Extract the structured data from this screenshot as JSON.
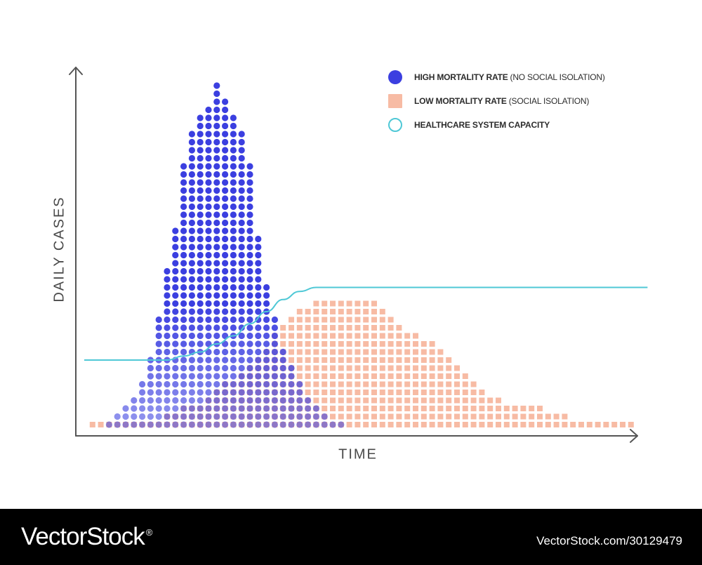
{
  "chart_data": {
    "type": "scatter",
    "title": "",
    "xlabel": "TIME",
    "ylabel": "DAILY CASES",
    "grid": false,
    "legend_placement": "top-right",
    "x_range": [
      0,
      68
    ],
    "y_range": [
      0,
      44
    ],
    "series": [
      {
        "name": "HIGH MORTALITY RATE",
        "name_note": "(NO SOCIAL ISOLATION)",
        "marker": "circle",
        "color": "#3b3fe0",
        "x": [
          3,
          4,
          5,
          6,
          7,
          8,
          9,
          10,
          11,
          12,
          13,
          14,
          15,
          16,
          17,
          18,
          19,
          20,
          21,
          22,
          23,
          24,
          25,
          26,
          27,
          28,
          29,
          30,
          31
        ],
        "values": [
          1,
          2,
          3,
          4,
          6,
          9,
          14,
          20,
          25,
          33,
          37,
          39,
          40,
          43,
          41,
          39,
          37,
          33,
          24,
          18,
          14,
          10,
          8,
          6,
          4,
          3,
          2,
          1,
          1
        ]
      },
      {
        "name": "LOW MORTALITY RATE",
        "name_note": "(SOCIAL ISOLATION)",
        "marker": "square",
        "color": "#f7bba4",
        "x": [
          1,
          2,
          3,
          4,
          5,
          6,
          7,
          8,
          9,
          10,
          11,
          12,
          13,
          14,
          15,
          16,
          17,
          18,
          19,
          20,
          21,
          22,
          23,
          24,
          25,
          26,
          27,
          28,
          29,
          30,
          31,
          32,
          33,
          34,
          35,
          36,
          37,
          38,
          39,
          40,
          41,
          42,
          43,
          44,
          45,
          46,
          47,
          48,
          49,
          50,
          51,
          52,
          53,
          54,
          55,
          56,
          57,
          58,
          59,
          60,
          61,
          62,
          63,
          64,
          65,
          66
        ],
        "values": [
          1,
          1,
          1,
          1,
          1,
          1,
          1,
          1,
          1,
          2,
          2,
          3,
          3,
          3,
          4,
          5,
          6,
          6,
          7,
          8,
          9,
          10,
          12,
          13,
          14,
          15,
          15,
          16,
          16,
          16,
          16,
          16,
          16,
          16,
          16,
          15,
          14,
          13,
          12,
          12,
          11,
          11,
          10,
          9,
          8,
          7,
          6,
          5,
          4,
          4,
          3,
          3,
          3,
          3,
          3,
          2,
          2,
          2,
          1,
          1,
          1,
          1,
          1,
          1,
          1,
          1
        ]
      },
      {
        "name": "HEALTHCARE SYSTEM CAPACITY",
        "marker": "line",
        "color": "#4fc8d6",
        "x": [
          0,
          2,
          4,
          6,
          8,
          10,
          12,
          14,
          16,
          18,
          20,
          22,
          24,
          26,
          28,
          30,
          32,
          34,
          36,
          38,
          40,
          45,
          50,
          55,
          60,
          65,
          68
        ],
        "values": [
          8,
          8,
          8,
          8,
          8,
          8,
          8.5,
          9,
          10,
          11,
          12.5,
          14,
          15.5,
          16.5,
          17,
          17,
          17,
          17,
          17,
          17,
          17,
          17,
          17,
          17,
          17,
          17,
          17
        ]
      }
    ]
  },
  "footer": {
    "brand": "VectorStock",
    "registered": "®",
    "image_id": "VectorStock.com/30129479"
  }
}
